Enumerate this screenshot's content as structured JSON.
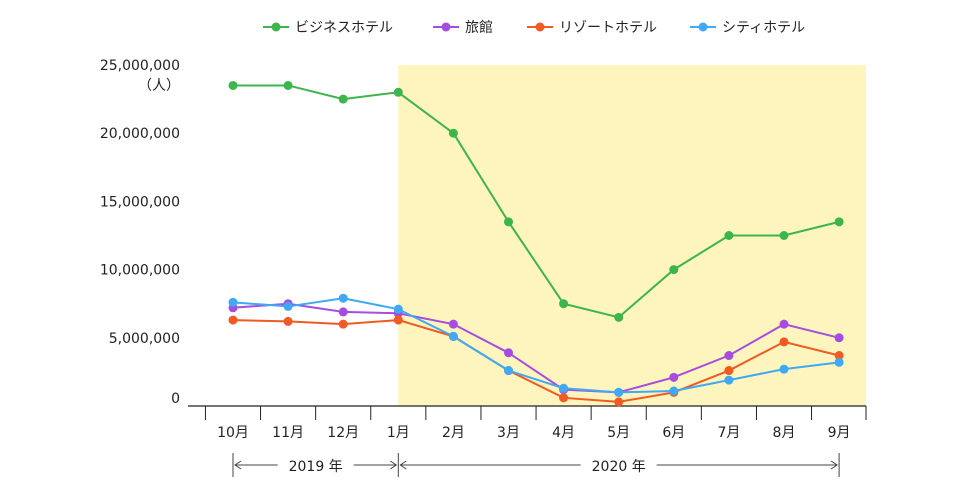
{
  "chart_data": {
    "type": "line",
    "unit_label": "（人）",
    "categories": [
      "10月",
      "11月",
      "12月",
      "1月",
      "2月",
      "3月",
      "4月",
      "5月",
      "6月",
      "7月",
      "8月",
      "9月"
    ],
    "ylim": [
      0,
      25000000
    ],
    "yticks": [
      "0",
      "5,000,000",
      "10,000,000",
      "15,000,000",
      "20,000,000",
      "25,000,000"
    ],
    "ytick_values": [
      0,
      5000000,
      10000000,
      15000000,
      20000000,
      25000000
    ],
    "highlight_from_category": "1月",
    "highlight_color": "#fdf5bd",
    "periods": [
      {
        "label": "2019 年"
      },
      {
        "label": "2020 年"
      }
    ],
    "legend_position": "top",
    "series": [
      {
        "name": "ビジネスホテル",
        "color": "#3cb54a",
        "values": [
          23500000,
          23500000,
          22500000,
          23000000,
          20000000,
          13500000,
          7500000,
          6500000,
          10000000,
          12500000,
          12500000,
          13500000
        ]
      },
      {
        "name": "旅館",
        "color": "#a64de0",
        "values": [
          7200000,
          7500000,
          6900000,
          6800000,
          6000000,
          3900000,
          1200000,
          1000000,
          2100000,
          3700000,
          6000000,
          5000000
        ]
      },
      {
        "name": "リゾートホテル",
        "color": "#f05a23",
        "values": [
          6300000,
          6200000,
          6000000,
          6300000,
          5100000,
          2600000,
          600000,
          300000,
          1000000,
          2600000,
          4700000,
          3700000
        ]
      },
      {
        "name": "シティホテル",
        "color": "#3fa9f5",
        "values": [
          7600000,
          7300000,
          7900000,
          7100000,
          5100000,
          2600000,
          1300000,
          1000000,
          1100000,
          1900000,
          2700000,
          3200000
        ]
      }
    ]
  }
}
